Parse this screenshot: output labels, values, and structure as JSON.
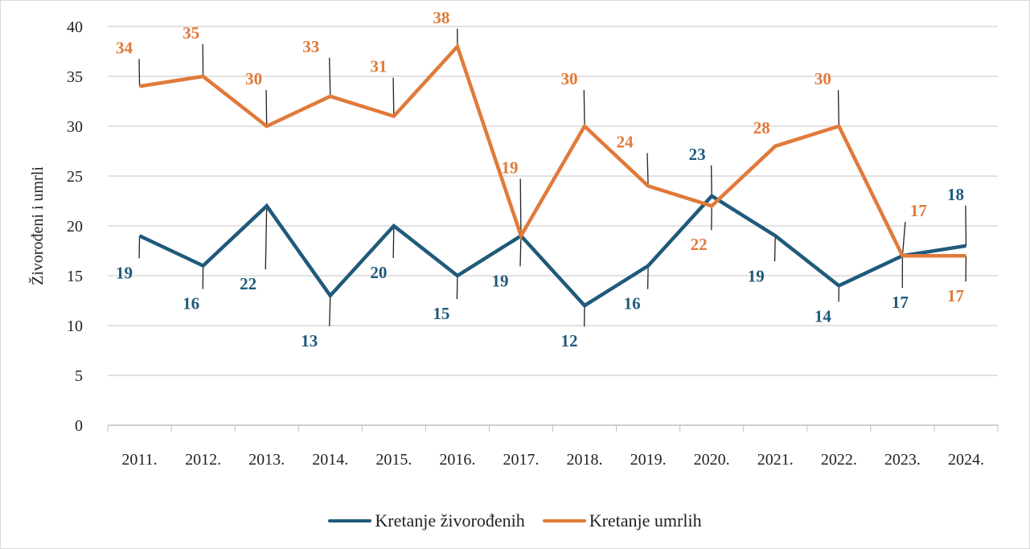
{
  "chart_data": {
    "type": "line",
    "title": "",
    "xlabel": "",
    "ylabel": "Živorođeni i umrli",
    "ylim": [
      0,
      40
    ],
    "yticks": [
      "0",
      "5",
      "10",
      "15",
      "20",
      "25",
      "30",
      "35",
      "40"
    ],
    "categories": [
      "2011.",
      "2012.",
      "2013.",
      "2014.",
      "2015.",
      "2016.",
      "2017.",
      "2018.",
      "2019.",
      "2020.",
      "2021.",
      "2022.",
      "2023.",
      "2024."
    ],
    "grid": true,
    "legend_position": "bottom",
    "series": [
      {
        "name": "Kretanje živorođenih",
        "color": "#1f5a7a",
        "values": [
          19,
          16,
          22,
          13,
          20,
          15,
          19,
          12,
          16,
          23,
          19,
          14,
          17,
          18
        ]
      },
      {
        "name": "Kretanje umrlih",
        "color": "#e07a3a",
        "values": [
          34,
          35,
          30,
          33,
          31,
          38,
          19,
          30,
          24,
          22,
          28,
          30,
          17,
          17
        ]
      }
    ]
  }
}
